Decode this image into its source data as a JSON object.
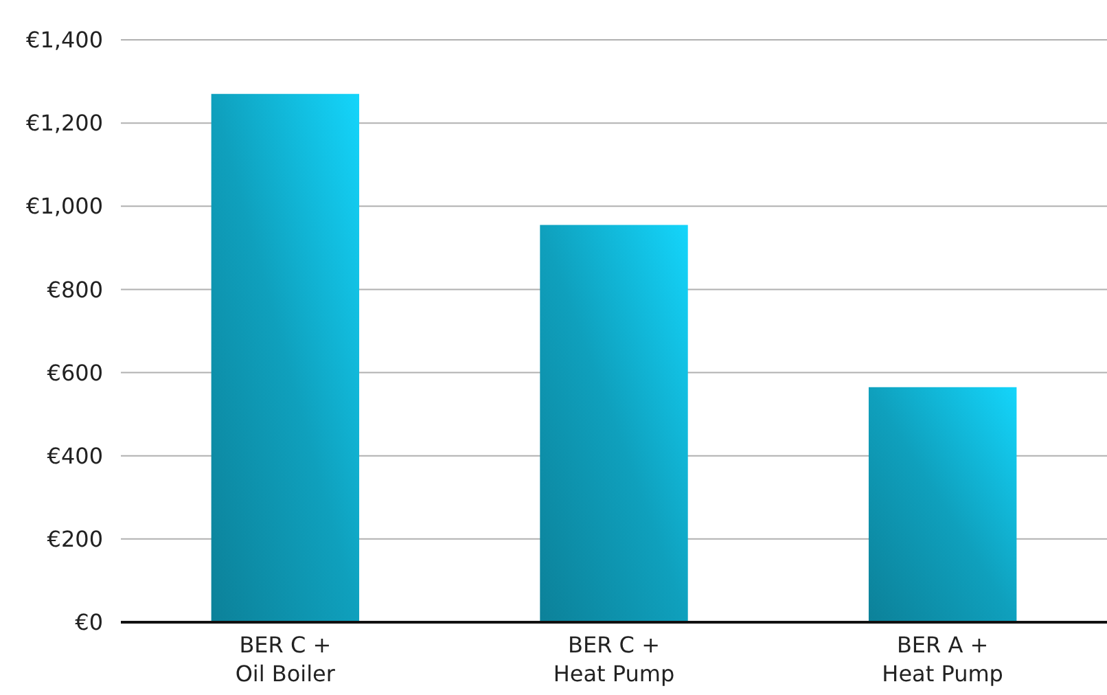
{
  "chart_data": {
    "type": "bar",
    "categories": [
      "BER C +\nOil Boiler",
      "BER C +\nHeat Pump",
      "BER A +\nHeat Pump"
    ],
    "values": [
      1270,
      955,
      565
    ],
    "color": "#0fa0bd",
    "ylim": [
      0,
      1400
    ],
    "yticks": [
      {
        "value": 0,
        "label": "€0"
      },
      {
        "value": 200,
        "label": "€200"
      },
      {
        "value": 400,
        "label": "€400"
      },
      {
        "value": 600,
        "label": "€600"
      },
      {
        "value": 800,
        "label": "€800"
      },
      {
        "value": 1000,
        "label": "€1,000"
      },
      {
        "value": 1200,
        "label": "€1,200"
      },
      {
        "value": 1400,
        "label": "€1,400"
      }
    ],
    "grid": "y"
  }
}
